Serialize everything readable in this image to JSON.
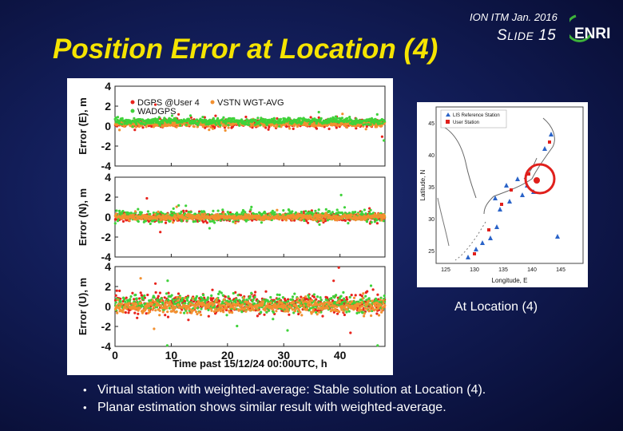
{
  "header": {
    "conference": "ION ITM Jan. 2016",
    "slide_prefix": "S",
    "slide_label": "LIDE",
    "slide_number": "15",
    "logo_text": "ENRI"
  },
  "title": "Position Error at Location (4)",
  "colors": {
    "title": "#f5e400",
    "dgps": "#e8231c",
    "vstn": "#f29030",
    "wadgps": "#3fd23a",
    "map_highlight": "#e0201c",
    "station_marker": "#2a63c8"
  },
  "chart_data": [
    {
      "type": "scatter",
      "ylabel": "Error (E), m",
      "xlabel": "",
      "xlim": [
        0,
        48
      ],
      "ylim": [
        -4,
        4
      ],
      "yticks": [
        "4",
        "2",
        "0",
        "-2",
        "-4"
      ],
      "legend": [
        "DGPS @User 4",
        "VSTN WGT-AVG",
        "WADGPS"
      ],
      "legend_placement": "top-left",
      "series": [
        {
          "name": "DGPS @User 4",
          "color": "#e8231c",
          "mean": 0.3,
          "spread": 0.35
        },
        {
          "name": "VSTN WGT-AVG",
          "color": "#f29030",
          "mean": 0.2,
          "spread": 0.25
        },
        {
          "name": "WADGPS",
          "color": "#3fd23a",
          "mean": 0.5,
          "spread": 0.3
        }
      ]
    },
    {
      "type": "scatter",
      "ylabel": "Error (N), m",
      "xlabel": "",
      "xlim": [
        0,
        48
      ],
      "ylim": [
        -4,
        4
      ],
      "yticks": [
        "4",
        "2",
        "0",
        "-2",
        "-4"
      ],
      "series": [
        {
          "color": "#e8231c",
          "mean": 0.0,
          "spread": 0.4
        },
        {
          "color": "#3fd23a",
          "mean": 0.1,
          "spread": 0.5
        },
        {
          "color": "#f29030",
          "mean": 0.0,
          "spread": 0.25
        }
      ]
    },
    {
      "type": "scatter",
      "ylabel": "Error (U), m",
      "xlabel": "Time past 15/12/24 00:00UTC, h",
      "xlim": [
        0,
        48
      ],
      "ylim": [
        -4,
        4
      ],
      "yticks": [
        "4",
        "2",
        "0",
        "-2",
        "-4"
      ],
      "xticks": [
        "0",
        "10",
        "20",
        "30",
        "40"
      ],
      "xtick_values": [
        0,
        10,
        20,
        30,
        40
      ],
      "series": [
        {
          "color": "#e8231c",
          "mean": 0.3,
          "spread": 0.9
        },
        {
          "color": "#3fd23a",
          "mean": 0.3,
          "spread": 0.8
        },
        {
          "color": "#f29030",
          "mean": 0.0,
          "spread": 0.6
        }
      ]
    }
  ],
  "map": {
    "legend": [
      "LIS Reference Station",
      "User Station"
    ],
    "ylabel": "Latitude, N",
    "xlabel": "Longitude, E",
    "yticks": [
      "45",
      "40",
      "35",
      "30",
      "25"
    ],
    "xticks": [
      "125",
      "130",
      "135",
      "140",
      "145"
    ],
    "caption": "At Location (4)"
  },
  "bullets": [
    "Virtual station with weighted-average: Stable solution at Location (4).",
    "Planar estimation shows similar result with weighted-average."
  ]
}
